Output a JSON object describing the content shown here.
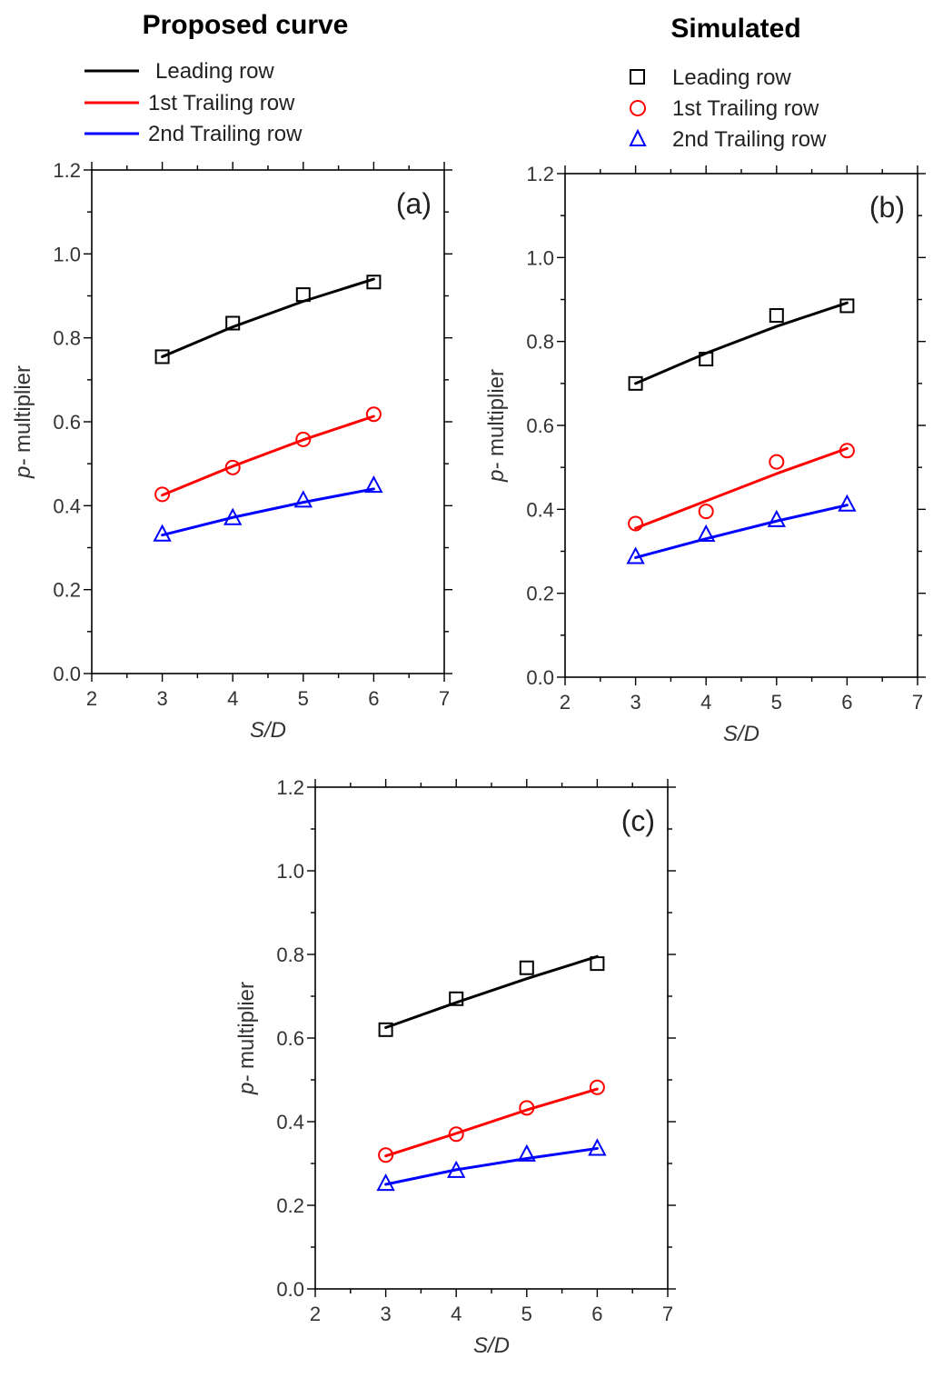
{
  "legends": {
    "proposed": {
      "title": "Proposed curve",
      "entries": [
        {
          "label": "Leading row",
          "color": "#000000"
        },
        {
          "label": "1st Trailing row",
          "color": "#ff0000"
        },
        {
          "label": "2nd Trailing row",
          "color": "#0000ff"
        }
      ]
    },
    "simulated": {
      "title": "Simulated",
      "entries": [
        {
          "label": "Leading row",
          "color": "#000000",
          "marker": "square"
        },
        {
          "label": "1st Trailing row",
          "color": "#ff0000",
          "marker": "circle"
        },
        {
          "label": "2nd Trailing row",
          "color": "#0000ff",
          "marker": "triangle"
        }
      ]
    }
  },
  "chart_data": [
    {
      "type": "line",
      "panel_label": "(a)",
      "xlabel": "S/D",
      "ylabel_prefix": "p-",
      "ylabel_rest": " multiplier",
      "xlim": [
        2,
        7
      ],
      "ylim": [
        0,
        1.2
      ],
      "xticks": [
        "2",
        "3",
        "4",
        "5",
        "6",
        "7"
      ],
      "yticks": [
        "0.0",
        "0.2",
        "0.4",
        "0.6",
        "0.8",
        "1.0",
        "1.2"
      ],
      "x": [
        3,
        4,
        5,
        6
      ],
      "series": [
        {
          "name": "Leading row",
          "color": "#000000",
          "marker": "square",
          "points": [
            0.755,
            0.835,
            0.903,
            0.933
          ],
          "curve": [
            0.755,
            0.826,
            0.887,
            0.94
          ]
        },
        {
          "name": "1st Trailing row",
          "color": "#ff0000",
          "marker": "circle",
          "points": [
            0.427,
            0.491,
            0.558,
            0.618
          ],
          "curve": [
            0.425,
            0.494,
            0.557,
            0.613
          ]
        },
        {
          "name": "2nd Trailing row",
          "color": "#0000ff",
          "marker": "triangle",
          "points": [
            0.332,
            0.371,
            0.413,
            0.448
          ],
          "curve": [
            0.33,
            0.372,
            0.408,
            0.44
          ]
        }
      ]
    },
    {
      "type": "line",
      "panel_label": "(b)",
      "xlabel": "S/D",
      "ylabel_prefix": "p-",
      "ylabel_rest": " multiplier",
      "xlim": [
        2,
        7
      ],
      "ylim": [
        0,
        1.2
      ],
      "xticks": [
        "2",
        "3",
        "4",
        "5",
        "6",
        "7"
      ],
      "yticks": [
        "0.0",
        "0.2",
        "0.4",
        "0.6",
        "0.8",
        "1.0",
        "1.2"
      ],
      "x": [
        3,
        4,
        5,
        6
      ],
      "series": [
        {
          "name": "Leading row",
          "color": "#000000",
          "marker": "square",
          "points": [
            0.7,
            0.758,
            0.862,
            0.885
          ],
          "curve": [
            0.7,
            0.772,
            0.836,
            0.892
          ]
        },
        {
          "name": "1st Trailing row",
          "color": "#ff0000",
          "marker": "circle",
          "points": [
            0.366,
            0.395,
            0.513,
            0.54
          ],
          "curve": [
            0.355,
            0.42,
            0.485,
            0.545
          ]
        },
        {
          "name": "2nd Trailing row",
          "color": "#0000ff",
          "marker": "triangle",
          "points": [
            0.287,
            0.34,
            0.375,
            0.412
          ],
          "curve": [
            0.285,
            0.33,
            0.372,
            0.41
          ]
        }
      ]
    },
    {
      "type": "line",
      "panel_label": "(c)",
      "xlabel": "S/D",
      "ylabel_prefix": "p-",
      "ylabel_rest": " multiplier",
      "xlim": [
        2,
        7
      ],
      "ylim": [
        0,
        1.2
      ],
      "xticks": [
        "2",
        "3",
        "4",
        "5",
        "6",
        "7"
      ],
      "yticks": [
        "0.0",
        "0.2",
        "0.4",
        "0.6",
        "0.8",
        "1.0",
        "1.2"
      ],
      "x": [
        3,
        4,
        5,
        6
      ],
      "series": [
        {
          "name": "Leading row",
          "color": "#000000",
          "marker": "square",
          "points": [
            0.62,
            0.694,
            0.768,
            0.778
          ],
          "curve": [
            0.625,
            0.685,
            0.742,
            0.795
          ]
        },
        {
          "name": "1st Trailing row",
          "color": "#ff0000",
          "marker": "circle",
          "points": [
            0.32,
            0.37,
            0.433,
            0.482
          ],
          "curve": [
            0.318,
            0.372,
            0.428,
            0.478
          ]
        },
        {
          "name": "2nd Trailing row",
          "color": "#0000ff",
          "marker": "triangle",
          "points": [
            0.252,
            0.283,
            0.322,
            0.336
          ],
          "curve": [
            0.25,
            0.285,
            0.312,
            0.336
          ]
        }
      ]
    }
  ]
}
